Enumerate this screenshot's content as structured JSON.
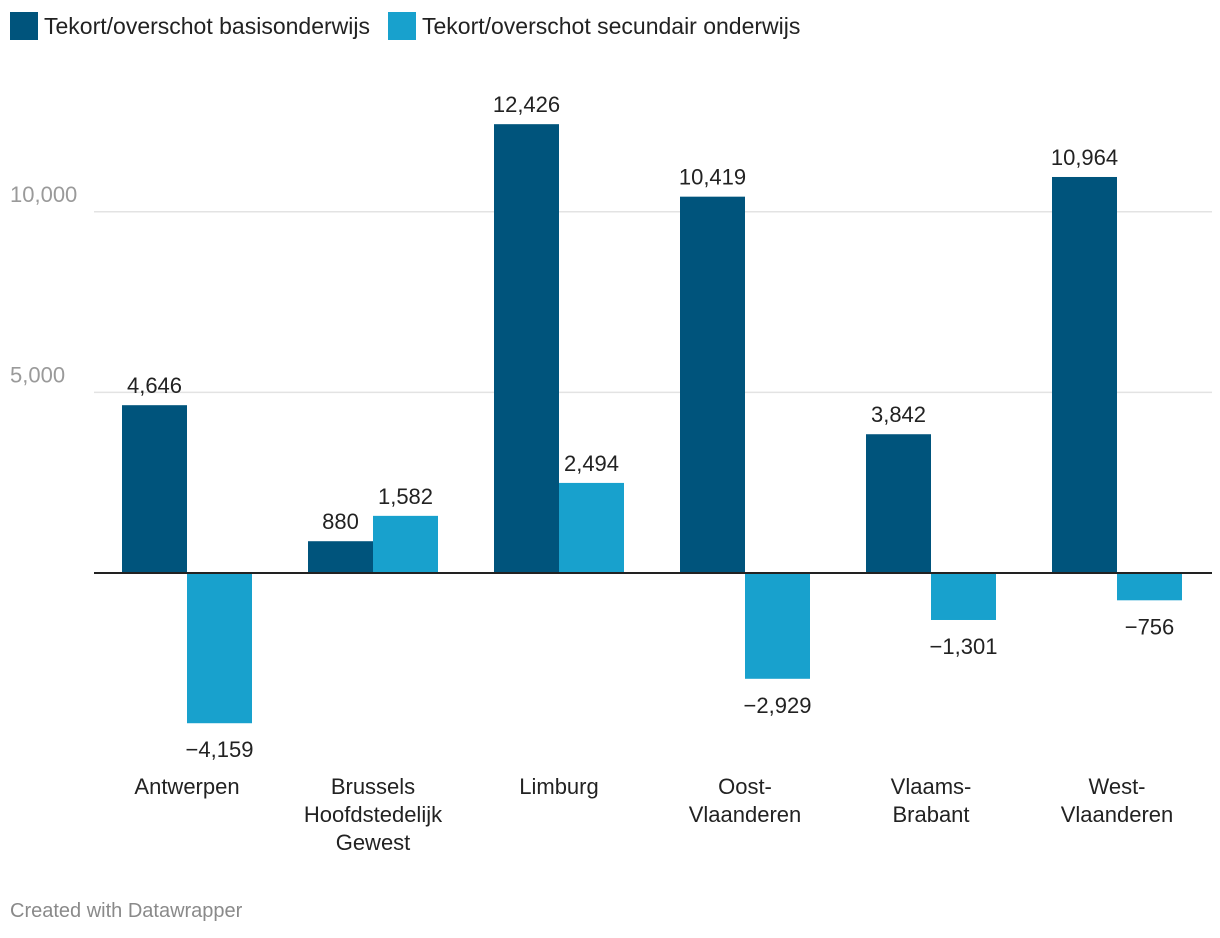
{
  "chart_data": {
    "type": "bar",
    "categories": [
      [
        "Antwerpen"
      ],
      [
        "Brussels",
        "Hoofdstedelijk",
        "Gewest"
      ],
      [
        "Limburg"
      ],
      [
        "Oost-",
        "Vlaanderen"
      ],
      [
        "Vlaams-",
        "Brabant"
      ],
      [
        "West-",
        "Vlaanderen"
      ]
    ],
    "series": [
      {
        "name": "Tekort/overschot basisonderwijs",
        "values": [
          4646,
          880,
          12426,
          10419,
          3842,
          10964
        ],
        "labels": [
          "4,646",
          "880",
          "12,426",
          "10,419",
          "3,842",
          "10,964"
        ],
        "color": "#00547c"
      },
      {
        "name": "Tekort/overschot secundair onderwijs",
        "values": [
          -4159,
          1582,
          2494,
          -2929,
          -1301,
          -756
        ],
        "labels": [
          "−4,159",
          "1,582",
          "2,494",
          "−2,929",
          "−1,301",
          "−756"
        ],
        "color": "#18a1cd"
      }
    ],
    "yticks": [
      5000,
      10000
    ],
    "ytick_labels": [
      "5,000",
      "10,000"
    ],
    "ylim": [
      -5000,
      13500
    ],
    "grid": true,
    "legend": "top-left"
  },
  "footer": {
    "credit": "Created with Datawrapper"
  }
}
